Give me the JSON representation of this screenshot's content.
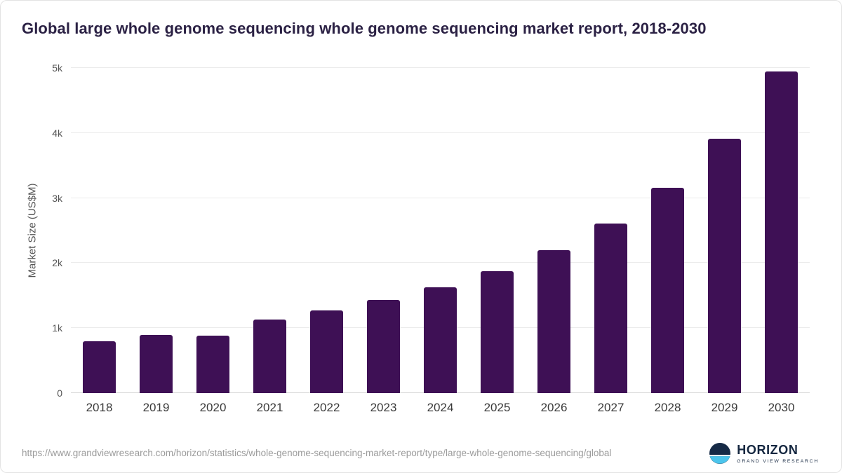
{
  "header": {
    "title": "Global large whole genome sequencing whole genome sequencing market report, 2018-2030"
  },
  "chart_data": {
    "type": "bar",
    "title": "Global large whole genome sequencing whole genome sequencing market report, 2018-2030",
    "categories": [
      "2018",
      "2019",
      "2020",
      "2021",
      "2022",
      "2023",
      "2024",
      "2025",
      "2026",
      "2027",
      "2028",
      "2029",
      "2030"
    ],
    "values": [
      800,
      890,
      885,
      1135,
      1270,
      1430,
      1630,
      1880,
      2200,
      2610,
      3155,
      3910,
      4945
    ],
    "xlabel": "",
    "ylabel": "Market Size (US$M)",
    "ylim": [
      0,
      5000
    ],
    "yticks": [
      0,
      1000,
      2000,
      3000,
      4000,
      5000
    ],
    "ytick_labels": [
      "0",
      "1k",
      "2k",
      "3k",
      "4k",
      "5k"
    ],
    "bar_color": "#3e1055",
    "grid": "horizontal",
    "legend": "none"
  },
  "footer": {
    "source_url": "https://www.grandviewresearch.com/horizon/statistics/whole-genome-sequencing-market-report/type/large-whole-genome-sequencing/global",
    "logo": {
      "name": "HORIZON",
      "subtitle": "GRAND VIEW RESEARCH",
      "icon": "horizon-globe-icon",
      "icon_navy": "#162A46",
      "icon_blue": "#4CC5EC"
    }
  }
}
